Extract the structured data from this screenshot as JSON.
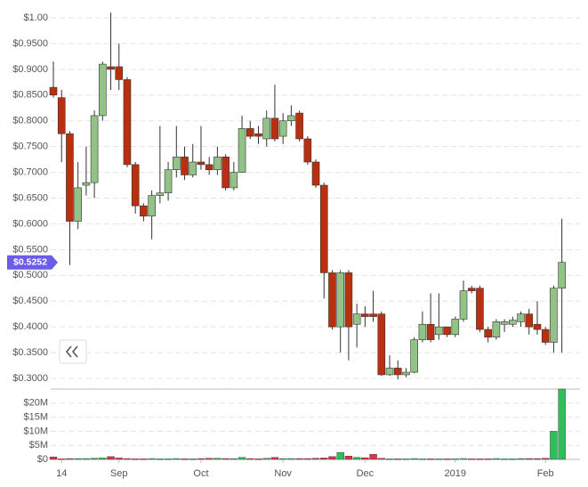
{
  "chart_data": [
    {
      "type": "candlestick",
      "open": [
        0.865,
        0.845,
        0.775,
        0.605,
        0.675,
        0.68,
        0.81,
        0.905,
        0.905,
        0.88,
        0.715,
        0.635,
        0.615,
        0.655,
        0.66,
        0.705,
        0.73,
        0.695,
        0.72,
        0.715,
        0.705,
        0.73,
        0.67,
        0.7,
        0.785,
        0.775,
        0.765,
        0.805,
        0.77,
        0.8,
        0.815,
        0.765,
        0.72,
        0.675,
        0.505,
        0.4,
        0.505,
        0.405,
        0.425,
        0.425,
        0.425,
        0.307,
        0.32,
        0.307,
        0.312,
        0.375,
        0.405,
        0.385,
        0.4,
        0.385,
        0.415,
        0.475,
        0.475,
        0.395,
        0.38,
        0.405,
        0.405,
        0.41,
        0.425,
        0.405,
        0.395,
        0.37,
        0.475
      ],
      "high": [
        0.915,
        0.86,
        0.78,
        0.72,
        0.75,
        0.82,
        0.915,
        1.01,
        0.95,
        0.885,
        0.72,
        0.64,
        0.665,
        0.79,
        0.72,
        0.79,
        0.75,
        0.755,
        0.79,
        0.73,
        0.75,
        0.735,
        0.72,
        0.81,
        0.8,
        0.79,
        0.82,
        0.87,
        0.815,
        0.83,
        0.82,
        0.77,
        0.725,
        0.68,
        0.51,
        0.51,
        0.51,
        0.445,
        0.44,
        0.47,
        0.43,
        0.345,
        0.335,
        0.32,
        0.38,
        0.43,
        0.465,
        0.465,
        0.395,
        0.42,
        0.49,
        0.48,
        0.48,
        0.4,
        0.415,
        0.415,
        0.42,
        0.43,
        0.435,
        0.45,
        0.4,
        0.48,
        0.61
      ],
      "low": [
        0.845,
        0.72,
        0.52,
        0.59,
        0.655,
        0.65,
        0.8,
        0.86,
        0.86,
        0.71,
        0.62,
        0.605,
        0.57,
        0.64,
        0.645,
        0.69,
        0.685,
        0.69,
        0.705,
        0.695,
        0.695,
        0.665,
        0.665,
        0.7,
        0.765,
        0.755,
        0.75,
        0.76,
        0.755,
        0.79,
        0.76,
        0.715,
        0.67,
        0.455,
        0.395,
        0.35,
        0.335,
        0.36,
        0.4,
        0.41,
        0.305,
        0.305,
        0.298,
        0.302,
        0.31,
        0.37,
        0.37,
        0.375,
        0.38,
        0.38,
        0.41,
        0.465,
        0.39,
        0.37,
        0.375,
        0.39,
        0.4,
        0.4,
        0.385,
        0.385,
        0.365,
        0.35,
        0.35
      ],
      "close": [
        0.85,
        0.775,
        0.605,
        0.67,
        0.68,
        0.81,
        0.91,
        0.9,
        0.88,
        0.715,
        0.635,
        0.615,
        0.655,
        0.66,
        0.705,
        0.73,
        0.695,
        0.72,
        0.715,
        0.705,
        0.73,
        0.67,
        0.7,
        0.785,
        0.77,
        0.77,
        0.805,
        0.765,
        0.8,
        0.81,
        0.765,
        0.72,
        0.675,
        0.505,
        0.4,
        0.505,
        0.4,
        0.425,
        0.42,
        0.42,
        0.307,
        0.32,
        0.307,
        0.312,
        0.375,
        0.405,
        0.375,
        0.4,
        0.385,
        0.415,
        0.47,
        0.47,
        0.395,
        0.38,
        0.41,
        0.41,
        0.413,
        0.425,
        0.4,
        0.395,
        0.37,
        0.475,
        0.5252
      ],
      "up_color": "#93c286",
      "down_color": "#b8300f",
      "ylim": [
        0.3,
        1.0
      ],
      "yticks": [
        {
          "value": 0.3,
          "label": "$0.3000"
        },
        {
          "value": 0.35,
          "label": "$0.3500"
        },
        {
          "value": 0.4,
          "label": "$0.4000"
        },
        {
          "value": 0.45,
          "label": "$0.4500"
        },
        {
          "value": 0.5,
          "label": "$0.5000"
        },
        {
          "value": 0.55,
          "label": "$0.5500"
        },
        {
          "value": 0.6,
          "label": "$0.6000"
        },
        {
          "value": 0.65,
          "label": "$0.6500"
        },
        {
          "value": 0.7,
          "label": "$0.7000"
        },
        {
          "value": 0.75,
          "label": "$0.7500"
        },
        {
          "value": 0.8,
          "label": "$0.8000"
        },
        {
          "value": 0.85,
          "label": "$0.8500"
        },
        {
          "value": 0.9,
          "label": "$0.9000"
        },
        {
          "value": 0.95,
          "label": "$0.9500"
        },
        {
          "value": 1.0,
          "label": "$1.00"
        }
      ],
      "current_price": {
        "value": 0.5252,
        "label": "$0.5252"
      },
      "grid": true
    },
    {
      "type": "bar",
      "categories": [
        null,
        "14",
        null,
        null,
        null,
        null,
        null,
        null,
        "Sep",
        null,
        null,
        null,
        null,
        null,
        null,
        null,
        null,
        null,
        "Oct",
        null,
        null,
        null,
        null,
        null,
        null,
        null,
        null,
        null,
        "Nov",
        null,
        null,
        null,
        null,
        null,
        null,
        null,
        null,
        null,
        "Dec",
        null,
        null,
        null,
        null,
        null,
        null,
        null,
        null,
        null,
        null,
        "2019",
        null,
        null,
        null,
        null,
        null,
        null,
        null,
        null,
        null,
        null,
        "Feb",
        null,
        null
      ],
      "values": [
        900000,
        200000,
        300000,
        300000,
        300000,
        400000,
        500000,
        1000000,
        500000,
        300000,
        200000,
        200000,
        300000,
        200000,
        200000,
        300000,
        200000,
        200000,
        300000,
        400000,
        400000,
        300000,
        300000,
        700000,
        300000,
        200000,
        400000,
        700000,
        300000,
        300000,
        300000,
        300000,
        400000,
        500000,
        1000000,
        2500000,
        1200000,
        700000,
        600000,
        1800000,
        400000,
        200000,
        200000,
        200000,
        300000,
        200000,
        200000,
        200000,
        200000,
        200000,
        300000,
        200000,
        200000,
        200000,
        300000,
        200000,
        200000,
        300000,
        300000,
        300000,
        400000,
        10000000,
        25000000
      ],
      "up_color": "#2fbf5a",
      "down_color": "#e0304e",
      "ylim": [
        0,
        25000000
      ],
      "yticks": [
        {
          "value": 0,
          "label": "$0"
        },
        {
          "value": 5000000,
          "label": "$5M"
        },
        {
          "value": 10000000,
          "label": "$10M"
        },
        {
          "value": 15000000,
          "label": "$15M"
        },
        {
          "value": 20000000,
          "label": "$20M"
        }
      ],
      "grid": true
    }
  ]
}
